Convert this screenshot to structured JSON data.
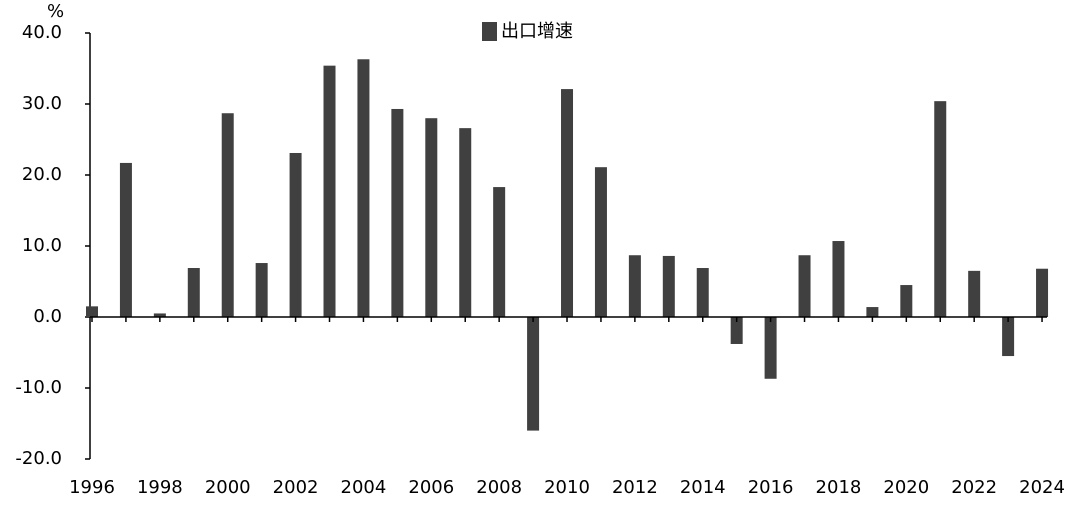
{
  "chart_data": {
    "type": "bar",
    "y_unit": "%",
    "categories": [
      "1996",
      null,
      "1998",
      null,
      "2000",
      null,
      "2002",
      null,
      "2004",
      null,
      "2006",
      null,
      "2008",
      null,
      "2010",
      null,
      "2012",
      null,
      "2014",
      null,
      "2016",
      null,
      "2018",
      null,
      "2020",
      null,
      "2022",
      null,
      "2024"
    ],
    "series": [
      {
        "name": "出口增速",
        "color": "#404040",
        "values": [
          1.5,
          21.7,
          0.5,
          6.9,
          28.7,
          7.6,
          23.1,
          35.4,
          36.3,
          29.3,
          28.0,
          26.6,
          18.3,
          -16.0,
          32.1,
          21.1,
          8.7,
          8.6,
          6.9,
          -3.8,
          -8.7,
          8.7,
          10.7,
          1.4,
          4.5,
          30.4,
          6.5,
          -5.5,
          6.8
        ]
      }
    ],
    "ylim": [
      -20,
      40
    ],
    "yticks": [
      {
        "value": -20,
        "label": "-20.0"
      },
      {
        "value": -10,
        "label": "-10.0"
      },
      {
        "value": 0,
        "label": "0.0"
      },
      {
        "value": 10,
        "label": "10.0"
      },
      {
        "value": 20,
        "label": "20.0"
      },
      {
        "value": 30,
        "label": "30.0"
      },
      {
        "value": 40,
        "label": "40.0"
      }
    ],
    "legend": "top",
    "grid": false
  }
}
